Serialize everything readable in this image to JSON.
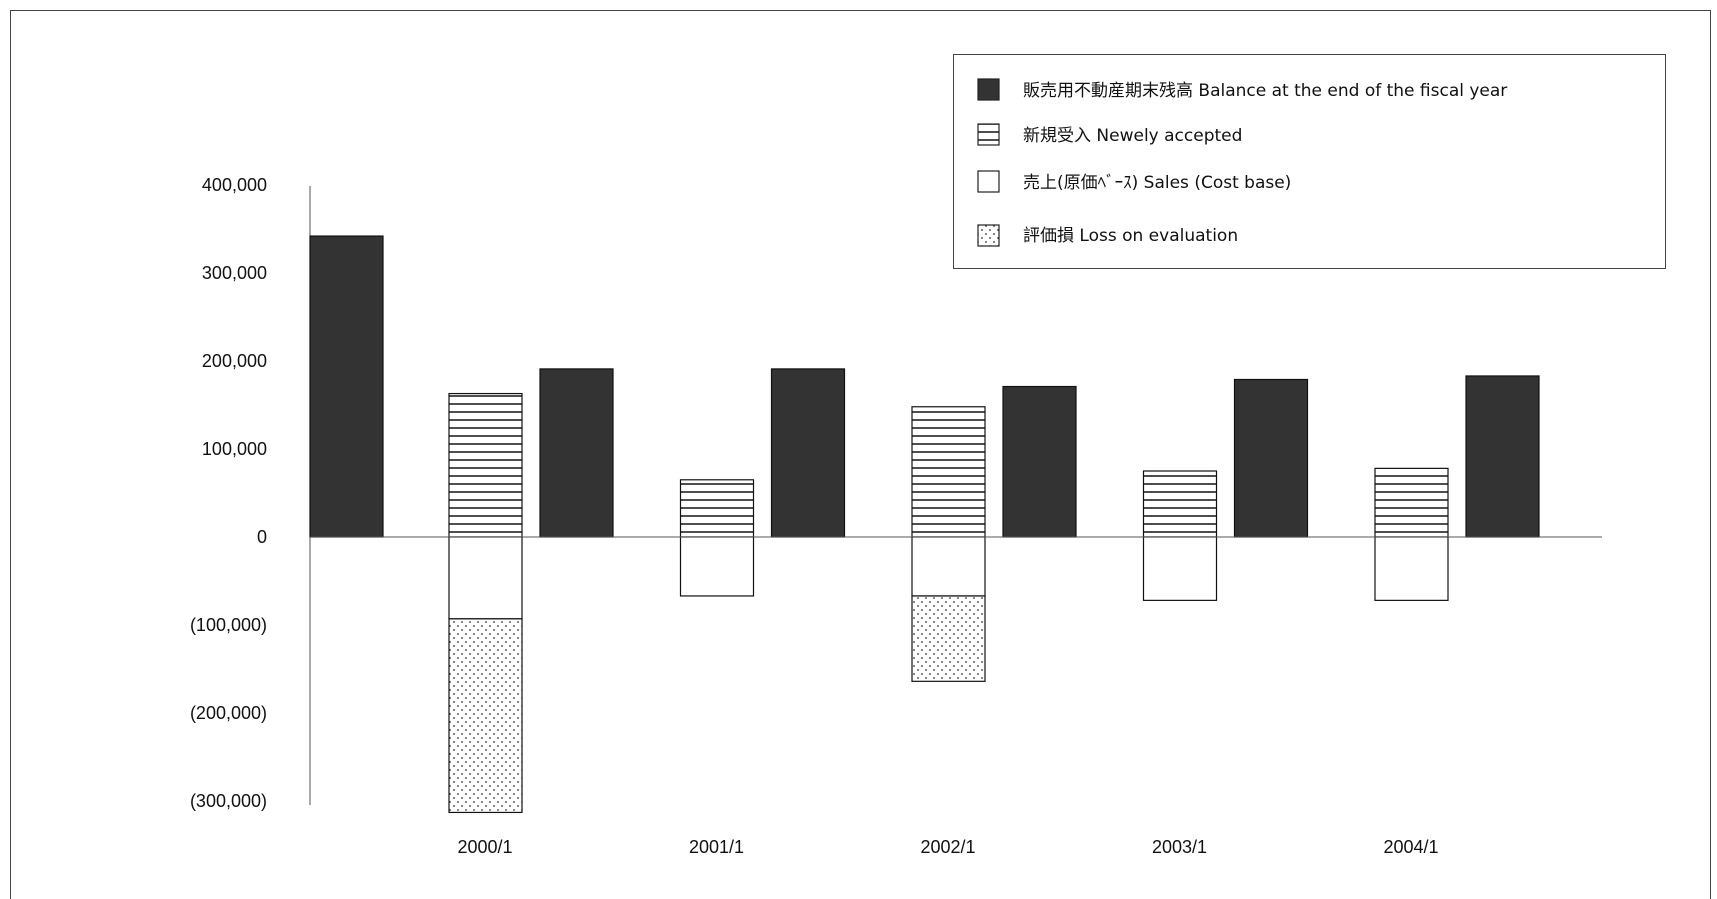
{
  "colors": {
    "balance": "#333333",
    "newly_accepted_lines": "#222222",
    "sales": "#ffffff",
    "loss_dots": "#333333"
  },
  "legend": [
    {
      "key": "balance",
      "label": "販売用不動産期末残高  Balance at the end of the fiscal year",
      "pattern": "solid"
    },
    {
      "key": "newly_accepted",
      "label": "新規受入 Newely accepted",
      "pattern": "horizontal-lines"
    },
    {
      "key": "sales",
      "label": "売上(原価ﾍﾞｰｽ) Sales (Cost base)",
      "pattern": "empty"
    },
    {
      "key": "loss_on_evaluation",
      "label": "評価損 Loss on evaluation",
      "pattern": "dots"
    }
  ],
  "chart_data": {
    "type": "bar",
    "title": "",
    "xlabel": "",
    "ylabel": "",
    "ylim": [
      -300000,
      400000
    ],
    "y_ticks": [
      400000,
      300000,
      200000,
      100000,
      0,
      -100000,
      -200000,
      -300000
    ],
    "y_tick_labels": [
      "400,000",
      "300,000",
      "200,000",
      "100,000",
      "0",
      "(100,000)",
      "(200,000)",
      "(300,000)"
    ],
    "grid": false,
    "legend_position": "top-right",
    "categories": [
      "2000/1",
      "2001/1",
      "2002/1",
      "2003/1",
      "2004/1"
    ],
    "opening_balance": 342000,
    "series": [
      {
        "name": "販売用不動産期末残高  Balance at the end of the fiscal year",
        "key": "balance",
        "values": [
          191000,
          191000,
          171000,
          179000,
          183000
        ]
      },
      {
        "name": "新規受入 Newely accepted",
        "key": "newly_accepted",
        "values": [
          163000,
          65000,
          148000,
          75000,
          78000
        ]
      },
      {
        "name": "売上(原価ﾍﾞｰｽ) Sales (Cost base)",
        "key": "sales",
        "values": [
          -93000,
          -67000,
          -67000,
          -72000,
          -72000
        ]
      },
      {
        "name": "評価損 Loss on evaluation",
        "key": "loss_on_evaluation",
        "values": [
          -220000,
          0,
          -97000,
          0,
          0
        ]
      }
    ]
  }
}
